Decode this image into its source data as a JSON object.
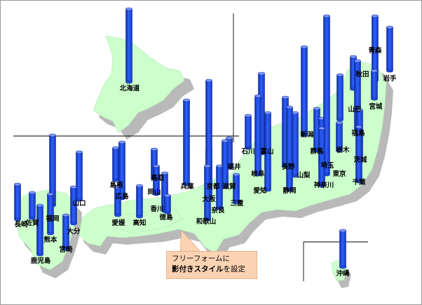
{
  "colors": {
    "land": "#ccffcc",
    "land_stroke": "#a8dca8",
    "shadow": "#b7b7b7",
    "bar": "#1f4fe0",
    "bar_top": "#7d9bff",
    "bar_dark": "#0f2aa0",
    "callout_bg": "#fbd3b3"
  },
  "callout": {
    "line1": "フリーフォームに",
    "line2_bold": "影付きスタイル",
    "line2_rest": "を設定"
  },
  "prefectures": [
    {
      "name": "北海道"
    },
    {
      "name": "青森"
    },
    {
      "name": "岩手"
    },
    {
      "name": "秋田"
    },
    {
      "name": "宮城"
    },
    {
      "name": "山形"
    },
    {
      "name": "福島"
    },
    {
      "name": "新潟"
    },
    {
      "name": "富山"
    },
    {
      "name": "石川"
    },
    {
      "name": "福井"
    },
    {
      "name": "長野"
    },
    {
      "name": "山梨"
    },
    {
      "name": "群馬"
    },
    {
      "name": "栃木"
    },
    {
      "name": "埼玉"
    },
    {
      "name": "茨城"
    },
    {
      "name": "東京"
    },
    {
      "name": "神奈川"
    },
    {
      "name": "千葉"
    },
    {
      "name": "岐阜"
    },
    {
      "name": "静岡"
    },
    {
      "name": "愛知"
    },
    {
      "name": "三重"
    },
    {
      "name": "滋賀"
    },
    {
      "name": "京都"
    },
    {
      "name": "大阪"
    },
    {
      "name": "奈良"
    },
    {
      "name": "和歌山"
    },
    {
      "name": "兵庫"
    },
    {
      "name": "鳥取"
    },
    {
      "name": "岡山"
    },
    {
      "name": "島根"
    },
    {
      "name": "広島"
    },
    {
      "name": "山口"
    },
    {
      "name": "香川"
    },
    {
      "name": "徳島"
    },
    {
      "name": "愛媛"
    },
    {
      "name": "高知"
    },
    {
      "name": "福岡"
    },
    {
      "name": "佐賀"
    },
    {
      "name": "長崎"
    },
    {
      "name": "大分"
    },
    {
      "name": "熊本"
    },
    {
      "name": "宮崎"
    },
    {
      "name": "鹿児島"
    },
    {
      "name": "沖縄"
    }
  ]
}
